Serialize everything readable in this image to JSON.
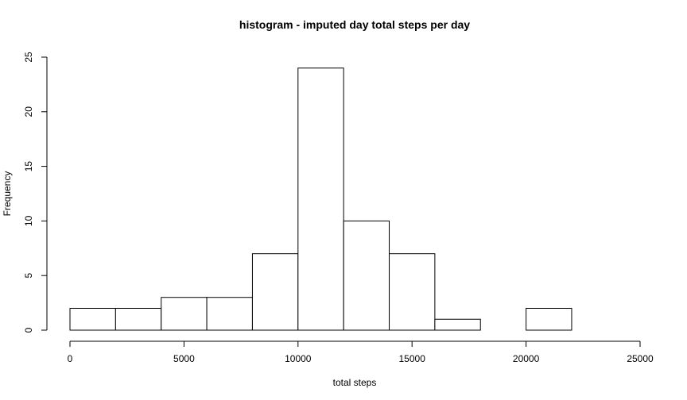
{
  "chart_data": {
    "type": "bar",
    "title": "histogram - imputed day total steps per day",
    "xlabel": "total steps",
    "ylabel": "Frequency",
    "bin_edges": [
      0,
      2000,
      4000,
      6000,
      8000,
      10000,
      12000,
      14000,
      16000,
      18000,
      20000,
      22000
    ],
    "values": [
      2,
      2,
      3,
      3,
      7,
      24,
      10,
      7,
      1,
      0,
      2
    ],
    "xlim": [
      0,
      25000
    ],
    "ylim": [
      0,
      25
    ],
    "x_ticks": [
      0,
      5000,
      10000,
      15000,
      20000,
      25000
    ],
    "y_ticks": [
      0,
      5,
      10,
      15,
      20,
      25
    ],
    "grid": false,
    "bar_fill": "#ffffff",
    "bar_stroke": "#000000"
  }
}
